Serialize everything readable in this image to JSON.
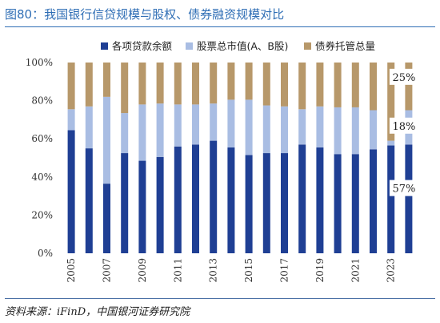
{
  "title": "图80：我国银行信贷规模与股权、债券融资规模对比",
  "source": "资料来源：iFinD，中国银河证券研究院",
  "colors": {
    "loans": "#1f3f94",
    "equity": "#a9bde3",
    "bonds": "#b7986a"
  },
  "chart_data": {
    "type": "bar",
    "stacked": true,
    "categories": [
      "2005",
      "2006",
      "2007",
      "2008",
      "2009",
      "2010",
      "2011",
      "2012",
      "2013",
      "2014",
      "2015",
      "2016",
      "2017",
      "2018",
      "2019",
      "2020",
      "2021",
      "2022",
      "2023",
      "2024"
    ],
    "x_tick_labels": [
      "2005",
      "2007",
      "2009",
      "2011",
      "2013",
      "2015",
      "2017",
      "2019",
      "2021",
      "2023"
    ],
    "series": [
      {
        "name": "各项贷款余额",
        "values": [
          64.5,
          55,
          36.5,
          52.5,
          48.5,
          50.5,
          56,
          57,
          59,
          55.5,
          51.5,
          52.5,
          52.5,
          57,
          55.5,
          52,
          52,
          54.5,
          56.5,
          57
        ]
      },
      {
        "name": "股票总市值(A、B股)",
        "values": [
          11,
          22,
          45.5,
          21,
          29.5,
          28,
          22,
          21,
          19.5,
          25,
          29,
          25,
          24.5,
          18.5,
          21.5,
          24.5,
          24.5,
          20.5,
          2.5,
          18
        ]
      },
      {
        "name": "债券托管总量",
        "values": [
          24.5,
          23,
          18,
          26.5,
          22,
          21.5,
          22,
          22,
          21.5,
          19.5,
          19.5,
          22.5,
          23,
          24.5,
          23,
          23.5,
          23.5,
          25,
          41,
          25
        ]
      }
    ],
    "y_tick_labels": [
      "0%",
      "20%",
      "40%",
      "60%",
      "80%",
      "100%"
    ],
    "ylim": [
      0,
      100
    ],
    "legend_position": "top",
    "annotations": [
      {
        "category": "2024",
        "text": "25%",
        "series": "债券托管总量"
      },
      {
        "category": "2024",
        "text": "18%",
        "series": "股票总市值(A、B股)"
      },
      {
        "category": "2024",
        "text": "57%",
        "series": "各项贷款余额"
      }
    ]
  }
}
